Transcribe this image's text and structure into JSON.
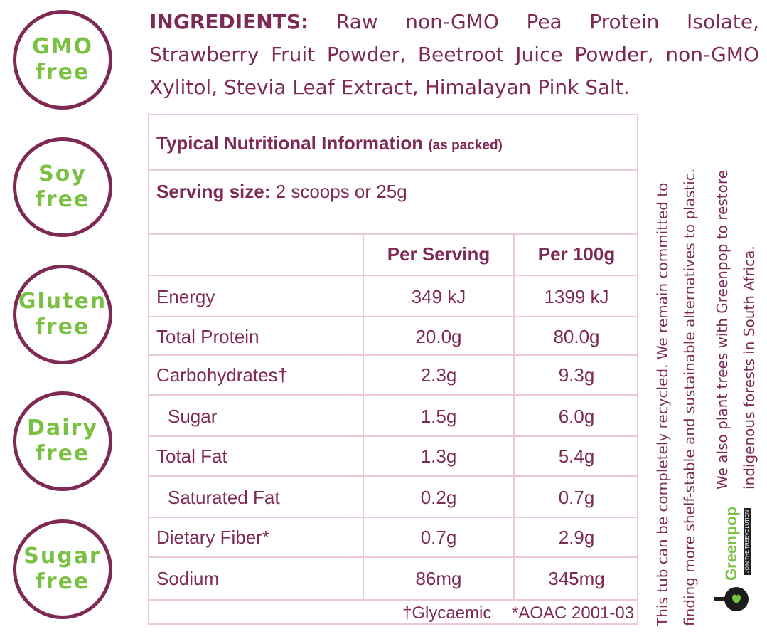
{
  "badges": [
    {
      "line1": "GMO",
      "line2": "free"
    },
    {
      "line1": "Soy",
      "line2": "free"
    },
    {
      "line1": "Gluten",
      "line2": "free"
    },
    {
      "line1": "Dairy",
      "line2": "free"
    },
    {
      "line1": "Sugar",
      "line2": "free"
    }
  ],
  "ingredients": {
    "label": "INGREDIENTS:",
    "text": "Raw non-GMO Pea Protein Isolate, Strawberry Fruit Powder, Beetroot Juice Powder, non-GMO Xylitol, Stevia Leaf Extract, Himalayan Pink Salt."
  },
  "nutrition": {
    "title": "Typical Nutritional Information",
    "title_note": "(as packed)",
    "serving_label": "Serving size:",
    "serving_value": "2 scoops or 25g",
    "col_headers": [
      "Per Serving",
      "Per 100g"
    ],
    "rows": [
      {
        "label": "Energy",
        "per_serving": "349 kJ",
        "per_100g": "1399 kJ"
      },
      {
        "label": "Total Protein",
        "per_serving": "20.0g",
        "per_100g": "80.0g"
      },
      {
        "label": "Carbohydrates†",
        "per_serving": "2.3g",
        "per_100g": "9.3g"
      },
      {
        "label": "Sugar",
        "per_serving": "1.5g",
        "per_100g": "6.0g"
      },
      {
        "label": "Total Fat",
        "per_serving": "1.3g",
        "per_100g": "5.4g"
      },
      {
        "label": "Saturated Fat",
        "per_serving": "0.2g",
        "per_100g": "0.7g"
      },
      {
        "label": "Dietary Fiber*",
        "per_serving": "0.7g",
        "per_100g": "2.9g"
      },
      {
        "label": "Sodium",
        "per_serving": "86mg",
        "per_100g": "345mg"
      }
    ],
    "footnotes": [
      "†Glycaemic",
      "*AOAC 2001-03"
    ]
  },
  "side_text": [
    "This tub can be completely recycled. We remain committed to",
    "finding more shelf-stable and sustainable alternatives to plastic.",
    "We also plant trees with Greenpop to restore",
    "indigenous forests in South Africa."
  ],
  "greenpop": {
    "name": "Greenpop",
    "tagline": "JOIN THE TREEVOLUTION",
    "icon": "tree-logo-icon"
  },
  "colors": {
    "brand": "#7d2a55",
    "accent_green": "#7ac143",
    "table_line": "#e9c9da"
  }
}
